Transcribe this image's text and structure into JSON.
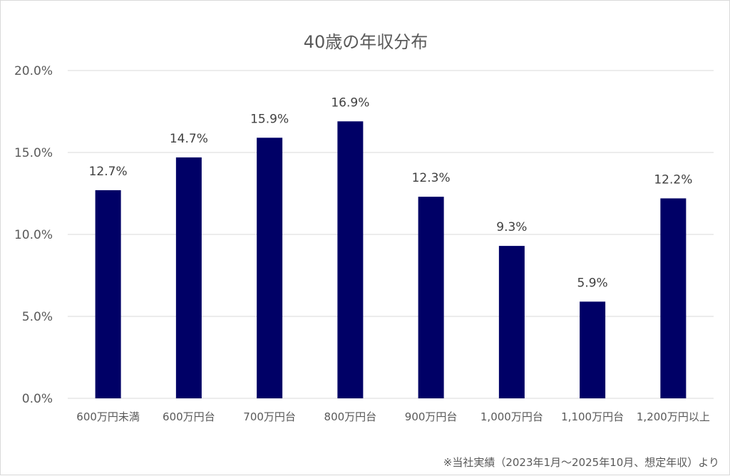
{
  "chart_data": {
    "type": "bar",
    "title": "40歳の年収分布",
    "xlabel": "",
    "ylabel": "",
    "categories": [
      "600万円未満",
      "600万円台",
      "700万円台",
      "800万円台",
      "900万円台",
      "1,000万円台",
      "1,100万円台",
      "1,200万円以上"
    ],
    "values": [
      12.7,
      14.7,
      15.9,
      16.9,
      12.3,
      9.3,
      5.9,
      12.2
    ],
    "data_labels": [
      "12.7%",
      "14.7%",
      "15.9%",
      "16.9%",
      "12.3%",
      "9.3%",
      "5.9%",
      "12.2%"
    ],
    "ylim": [
      0,
      20
    ],
    "yticks": [
      "0.0%",
      "5.0%",
      "10.0%",
      "15.0%",
      "20.0%"
    ],
    "grid": true,
    "legend": "none",
    "bar_color": "#000066",
    "footnote": "※当社実績（2023年1月～2025年10月、想定年収）より"
  }
}
